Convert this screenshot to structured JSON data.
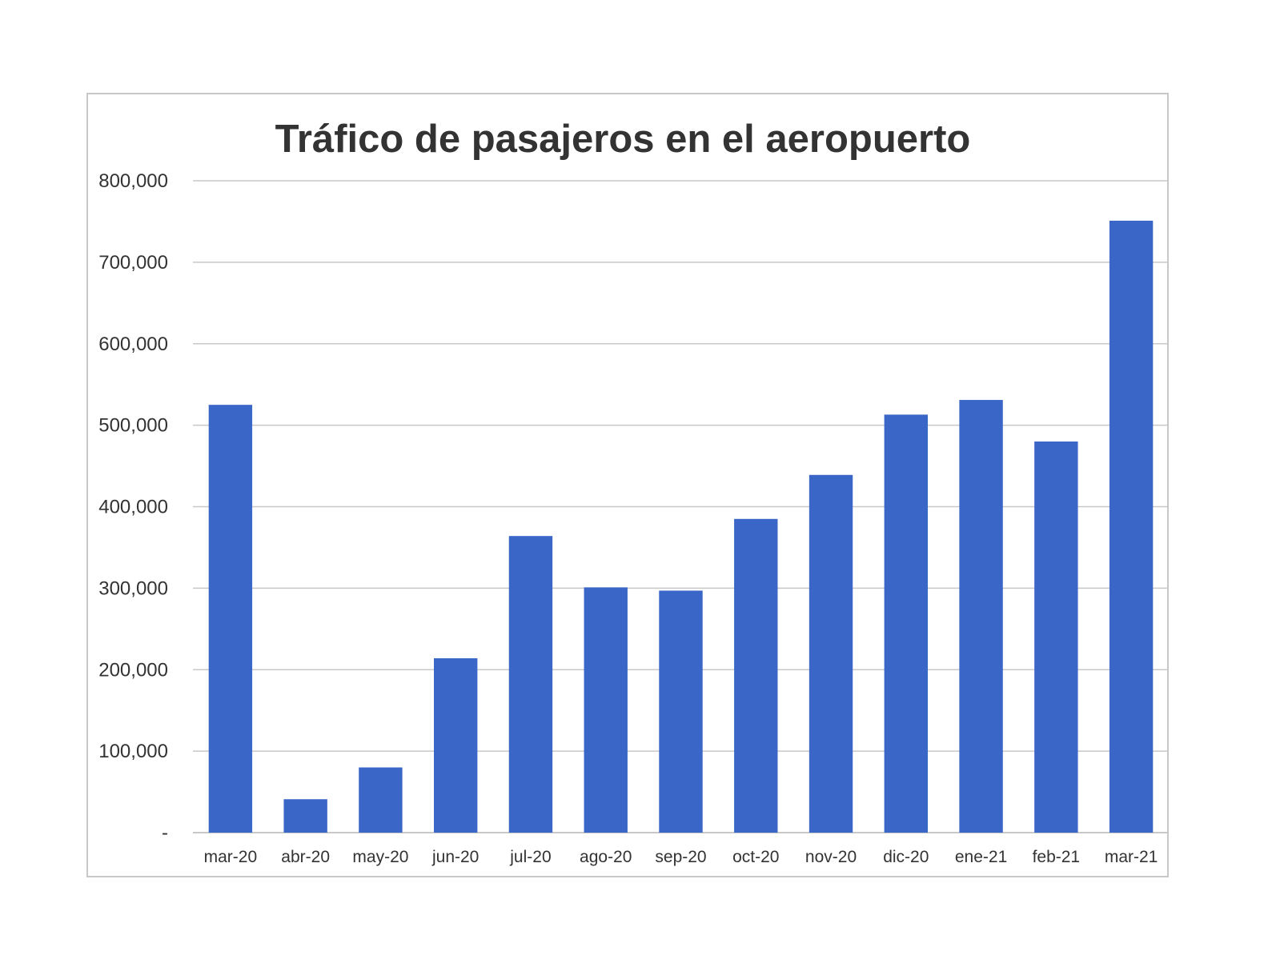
{
  "chart_data": {
    "type": "bar",
    "title": "Tráfico de pasajeros en el aeropuerto",
    "xlabel": "",
    "ylabel": "",
    "categories": [
      "mar-20",
      "abr-20",
      "may-20",
      "jun-20",
      "jul-20",
      "ago-20",
      "sep-20",
      "oct-20",
      "nov-20",
      "dic-20",
      "ene-21",
      "feb-21",
      "mar-21"
    ],
    "values": [
      525000,
      41000,
      80000,
      214000,
      364000,
      301000,
      297000,
      385000,
      439000,
      513000,
      531000,
      480000,
      751000
    ],
    "ylim": [
      0,
      800000
    ],
    "yticks": [
      0,
      100000,
      200000,
      300000,
      400000,
      500000,
      600000,
      700000,
      800000
    ],
    "ytick_labels": [
      "-",
      "100,000",
      "200,000",
      "300,000",
      "400,000",
      "500,000",
      "600,000",
      "700,000",
      "800,000"
    ],
    "grid": true,
    "legend": "none",
    "bar_color": "#3a66c8",
    "grid_color": "#c8c8c8"
  }
}
